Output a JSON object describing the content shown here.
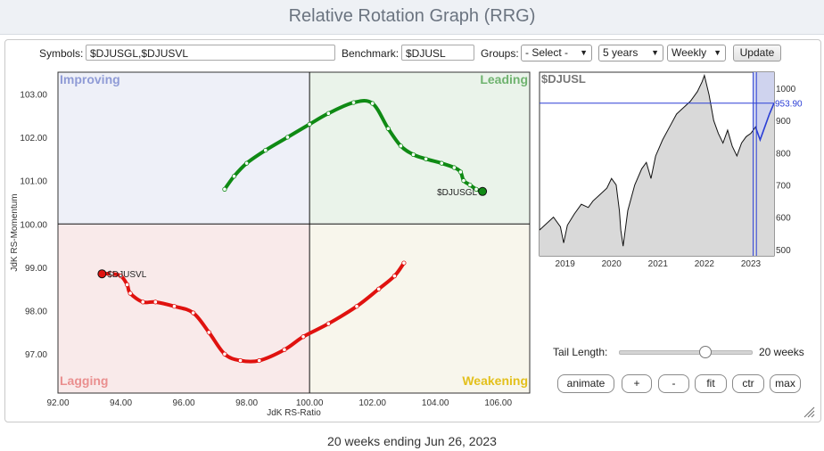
{
  "page": {
    "title": "Relative Rotation Graph (RRG)",
    "footer": "20 weeks ending Jun 26, 2023"
  },
  "controls": {
    "symbols_label": "Symbols:",
    "symbols_value": "$DJUSGL,$DJUSVL",
    "benchmark_label": "Benchmark:",
    "benchmark_value": "$DJUSL",
    "groups_label": "Groups:",
    "groups_value": "- Select -",
    "period_value": "5 years",
    "frequency_value": "Weekly",
    "update_label": "Update",
    "tail_length_label": "Tail Length:",
    "tail_length_value": "20 weeks",
    "tail_length_fraction": 0.65,
    "buttons": {
      "animate": "animate",
      "plus": "+",
      "minus": "-",
      "fit": "fit",
      "ctr": "ctr",
      "max": "max"
    }
  },
  "chart_data": [
    {
      "type": "scatter",
      "title": "",
      "xlabel": "JdK RS-Ratio",
      "ylabel": "JdK RS-Momentum",
      "xlim": [
        92,
        107
      ],
      "ylim": [
        96.1,
        103.5
      ],
      "xticks": [
        "92.00",
        "94.00",
        "96.00",
        "98.00",
        "100.00",
        "102.00",
        "104.00",
        "106.00"
      ],
      "yticks": [
        "97.00",
        "98.00",
        "99.00",
        "100.00",
        "101.00",
        "102.00",
        "103.00"
      ],
      "quadrants": {
        "top_left": "Improving",
        "top_right": "Leading",
        "bottom_left": "Lagging",
        "bottom_right": "Weakening"
      },
      "series": [
        {
          "name": "$DJUSGL",
          "color": "#0f8a14",
          "points": [
            [
              97.3,
              100.8
            ],
            [
              97.6,
              101.1
            ],
            [
              98.0,
              101.4
            ],
            [
              98.6,
              101.7
            ],
            [
              99.3,
              102.0
            ],
            [
              100.0,
              102.3
            ],
            [
              100.6,
              102.55
            ],
            [
              101.4,
              102.8
            ],
            [
              102.0,
              102.78
            ],
            [
              102.5,
              102.2
            ],
            [
              102.9,
              101.8
            ],
            [
              103.3,
              101.6
            ],
            [
              103.7,
              101.5
            ],
            [
              104.2,
              101.4
            ],
            [
              104.6,
              101.3
            ],
            [
              104.8,
              101.2
            ],
            [
              104.9,
              101.0
            ],
            [
              105.1,
              100.9
            ],
            [
              105.3,
              100.8
            ],
            [
              105.5,
              100.75
            ]
          ],
          "end_label": "$DJUSGL"
        },
        {
          "name": "$DJUSVL",
          "color": "#e0120f",
          "points": [
            [
              103.0,
              99.1
            ],
            [
              102.7,
              98.8
            ],
            [
              102.2,
              98.5
            ],
            [
              101.5,
              98.1
            ],
            [
              100.6,
              97.7
            ],
            [
              99.8,
              97.4
            ],
            [
              99.2,
              97.1
            ],
            [
              98.4,
              96.85
            ],
            [
              97.8,
              96.85
            ],
            [
              97.3,
              97.0
            ],
            [
              96.8,
              97.5
            ],
            [
              96.3,
              97.95
            ],
            [
              95.7,
              98.1
            ],
            [
              95.1,
              98.2
            ],
            [
              94.7,
              98.2
            ],
            [
              94.3,
              98.4
            ],
            [
              94.2,
              98.6
            ],
            [
              94.0,
              98.8
            ],
            [
              93.7,
              98.85
            ],
            [
              93.4,
              98.85
            ]
          ],
          "end_label": "$DJUSVL"
        }
      ]
    },
    {
      "type": "area",
      "title": "$DJUSL",
      "x": [
        2018.45,
        2018.6,
        2018.75,
        2018.9,
        2018.97,
        2019.05,
        2019.2,
        2019.35,
        2019.5,
        2019.6,
        2019.75,
        2019.9,
        2020.0,
        2020.1,
        2020.17,
        2020.2,
        2020.25,
        2020.35,
        2020.5,
        2020.65,
        2020.75,
        2020.85,
        2020.95,
        2021.1,
        2021.25,
        2021.4,
        2021.55,
        2021.7,
        2021.85,
        2021.95,
        2022.0,
        2022.1,
        2022.2,
        2022.3,
        2022.4,
        2022.5,
        2022.6,
        2022.7,
        2022.8,
        2022.9,
        2023.0,
        2023.1,
        2023.2,
        2023.3,
        2023.4,
        2023.5
      ],
      "y": [
        560,
        580,
        600,
        570,
        520,
        575,
        610,
        640,
        630,
        650,
        670,
        690,
        720,
        700,
        620,
        560,
        510,
        620,
        700,
        750,
        770,
        720,
        790,
        840,
        880,
        920,
        940,
        960,
        990,
        1020,
        1040,
        980,
        900,
        860,
        830,
        870,
        820,
        790,
        830,
        850,
        860,
        880,
        840,
        880,
        920,
        954
      ],
      "ylim": [
        480,
        1050
      ],
      "yticks": [
        "1000",
        "900",
        "800",
        "700",
        "600",
        "500"
      ],
      "xticks": [
        "2019",
        "2020",
        "2021",
        "2022",
        "2023"
      ],
      "last_value": 953.9,
      "last_label": "953.90"
    }
  ]
}
